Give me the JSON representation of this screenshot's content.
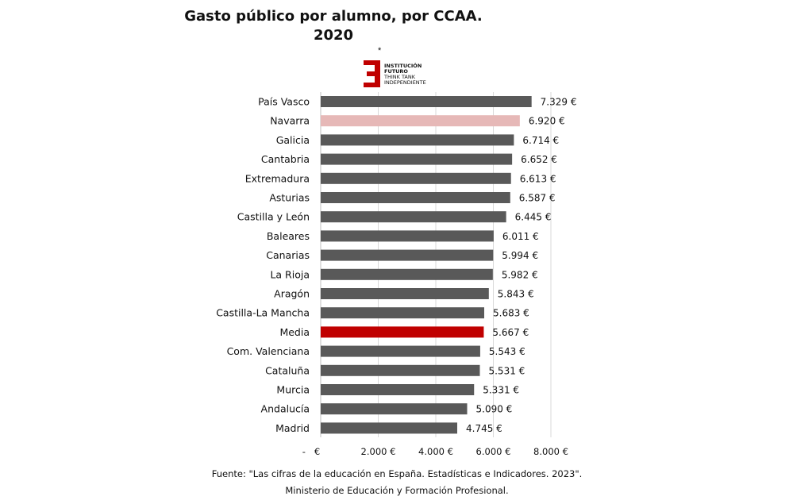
{
  "chart_data": {
    "type": "bar",
    "orientation": "horizontal",
    "title": "Gasto público por alumno, por CCAA.",
    "subtitle": "2020",
    "title_marker": "*",
    "categories": [
      "País Vasco",
      "Navarra",
      "Galicia",
      "Cantabria",
      "Extremadura",
      "Asturias",
      "Castilla y León",
      "Baleares",
      "Canarias",
      "La Rioja",
      "Aragón",
      "Castilla-La Mancha",
      "Media",
      "Com. Valenciana",
      "Cataluña",
      "Murcia",
      "Andalucía",
      "Madrid"
    ],
    "values": [
      7329,
      6920,
      6714,
      6652,
      6613,
      6587,
      6445,
      6011,
      5994,
      5982,
      5843,
      5683,
      5667,
      5543,
      5531,
      5331,
      5090,
      4745
    ],
    "value_labels": [
      "7.329 €",
      "6.920 €",
      "6.714 €",
      "6.652 €",
      "6.613 €",
      "6.587 €",
      "6.445 €",
      "6.011 €",
      "5.994 €",
      "5.982 €",
      "5.843 €",
      "5.683 €",
      "5.667 €",
      "5.543 €",
      "5.531 €",
      "5.331 €",
      "5.090 €",
      "4.745 €"
    ],
    "bar_colors": [
      "#595959",
      "#e6b8b7",
      "#595959",
      "#595959",
      "#595959",
      "#595959",
      "#595959",
      "#595959",
      "#595959",
      "#595959",
      "#595959",
      "#595959",
      "#c00000",
      "#595959",
      "#595959",
      "#595959",
      "#595959",
      "#595959"
    ],
    "xlim": [
      0,
      8000
    ],
    "xticks": [
      0,
      2000,
      4000,
      6000,
      8000
    ],
    "xtick_labels": [
      "-   €",
      "2.000 €",
      "4.000 €",
      "6.000 €",
      "8.000 €"
    ],
    "grid": "vertical",
    "legend": "none"
  },
  "logo": {
    "line1": "INSTITUCIÓN",
    "line2": "FUTURO",
    "line3": "THINK TANK",
    "line4": "INDEPENDIENTE"
  },
  "footer": {
    "line1": "Fuente: \"Las cifras de la educación en España. Estadísticas e Indicadores. 2023\".",
    "line2": "Ministerio de Educación y Formación Profesional."
  },
  "colors": {
    "bar_default": "#595959",
    "highlight_navarra": "#e6b8b7",
    "highlight_media": "#c00000",
    "grid": "#d9d9d9",
    "logo_red": "#c00000"
  }
}
